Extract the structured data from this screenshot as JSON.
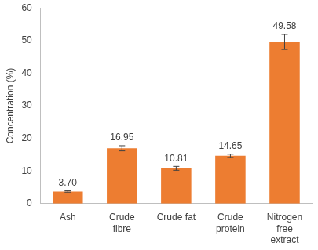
{
  "chart_data": {
    "type": "bar",
    "y_label": "Concentration (%)",
    "categories": [
      "Ash",
      "Crude fibre",
      "Crude fat",
      "Crude protein",
      "Nitrogen free extract"
    ],
    "values": [
      3.7,
      16.95,
      10.81,
      14.65,
      49.58
    ],
    "value_labels": [
      "3.70",
      "16.95",
      "10.81",
      "14.65",
      "49.58"
    ],
    "errors": [
      0.2,
      0.8,
      0.6,
      0.5,
      2.3
    ],
    "color": "#ed7d31",
    "ylim": [
      0,
      60
    ],
    "yticks": [
      0,
      10,
      20,
      30,
      40,
      50,
      60
    ],
    "grid": false,
    "data_labels": true
  }
}
